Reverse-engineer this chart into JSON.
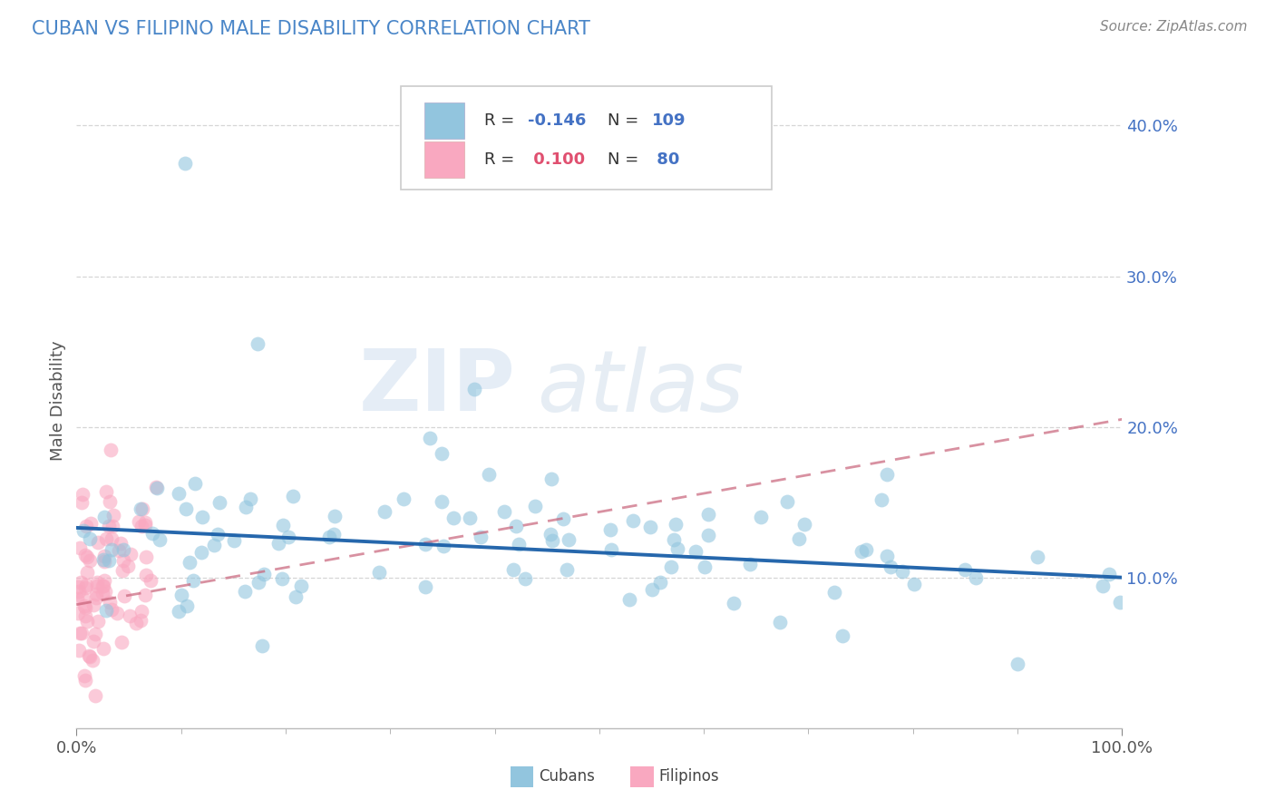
{
  "title": "CUBAN VS FILIPINO MALE DISABILITY CORRELATION CHART",
  "source": "Source: ZipAtlas.com",
  "ylabel": "Male Disability",
  "xlim": [
    0,
    1.0
  ],
  "ylim": [
    0,
    0.435
  ],
  "yticks": [
    0.1,
    0.2,
    0.3,
    0.4
  ],
  "ytick_labels": [
    "10.0%",
    "20.0%",
    "30.0%",
    "40.0%"
  ],
  "xtick_labels": [
    "0.0%",
    "100.0%"
  ],
  "cuban_R": -0.146,
  "cuban_N": 109,
  "filipino_R": 0.1,
  "filipino_N": 80,
  "cuban_color": "#92c5de",
  "cuban_line_color": "#1a5fa8",
  "filipino_color": "#f9a8c0",
  "filipino_line_color": "#c8637a",
  "background_color": "#ffffff",
  "watermark_zip": "ZIP",
  "watermark_atlas": "atlas",
  "title_color": "#4a86c8",
  "ytick_color": "#4472c4",
  "legend_label_color": "#333333",
  "legend_value_color": "#4472c4",
  "cuban_seed": 10,
  "filipino_seed": 20
}
